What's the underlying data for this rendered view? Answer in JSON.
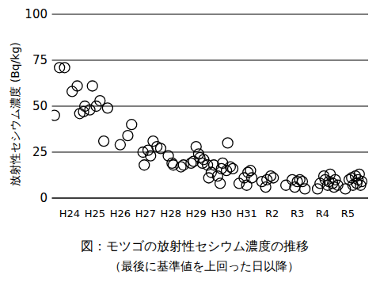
{
  "chart_data": {
    "type": "scatter",
    "title": "図：モツゴの放射性セシウム濃度の推移",
    "subtitle": "（最後に基準値を上回った日以降）",
    "y_label": "放射性セシウム濃度 (Bq/kg)",
    "color": "#000000",
    "marker": "circle",
    "grid": true,
    "xlim": [
      2011.3,
      2023.8
    ],
    "ylim": [
      0,
      100
    ],
    "xticks": [
      {
        "value": 2012,
        "label": "H24"
      },
      {
        "value": 2013,
        "label": "H25"
      },
      {
        "value": 2014,
        "label": "H26"
      },
      {
        "value": 2015,
        "label": "H27"
      },
      {
        "value": 2016,
        "label": "H28"
      },
      {
        "value": 2017,
        "label": "H29"
      },
      {
        "value": 2018,
        "label": "H30"
      },
      {
        "value": 2019,
        "label": "H31"
      },
      {
        "value": 2020,
        "label": "R2"
      },
      {
        "value": 2021,
        "label": "R3"
      },
      {
        "value": 2022,
        "label": "R4"
      },
      {
        "value": 2023,
        "label": "R5"
      }
    ],
    "yticks": [
      0,
      25,
      50,
      75,
      100
    ],
    "x": [
      2011.4,
      2011.6,
      2011.8,
      2012.1,
      2012.3,
      2012.4,
      2012.55,
      2012.6,
      2012.8,
      2012.9,
      2013.05,
      2013.2,
      2013.35,
      2013.5,
      2014.0,
      2014.3,
      2014.45,
      2014.9,
      2014.95,
      2015.1,
      2015.2,
      2015.3,
      2015.45,
      2015.6,
      2015.9,
      2016.05,
      2016.1,
      2016.4,
      2016.5,
      2016.8,
      2016.9,
      2017.0,
      2017.1,
      2017.15,
      2017.25,
      2017.3,
      2017.45,
      2017.5,
      2017.6,
      2017.7,
      2017.85,
      2017.95,
      2018.0,
      2018.05,
      2018.2,
      2018.25,
      2018.35,
      2018.45,
      2018.7,
      2018.9,
      2019.0,
      2019.05,
      2019.15,
      2019.2,
      2019.6,
      2019.75,
      2019.8,
      2019.95,
      2020.05,
      2020.55,
      2020.8,
      2020.9,
      2021.0,
      2021.1,
      2021.2,
      2021.3,
      2021.8,
      2021.9,
      2022.05,
      2022.1,
      2022.2,
      2022.25,
      2022.3,
      2022.4,
      2022.45,
      2022.5,
      2022.6,
      2022.9,
      2023.05,
      2023.15,
      2023.2,
      2023.3,
      2023.35,
      2023.4,
      2023.45,
      2023.5,
      2023.55
    ],
    "values": [
      45,
      71,
      71,
      58,
      61,
      46,
      47,
      50,
      48,
      61,
      50,
      53,
      31,
      49,
      29,
      34,
      40,
      25,
      18,
      26,
      23,
      31,
      28,
      27,
      23,
      19,
      18,
      17,
      18,
      19,
      20,
      28,
      24,
      22,
      19,
      21,
      18,
      11,
      14,
      18,
      12,
      8,
      16,
      19,
      15,
      30,
      17,
      16,
      8,
      11,
      7,
      14,
      15,
      11,
      9,
      6,
      10,
      12,
      11,
      7,
      10,
      6,
      9,
      10,
      9,
      5,
      5,
      8,
      12,
      10,
      7,
      9,
      13,
      8,
      6,
      10,
      7,
      5,
      10,
      11,
      7,
      12,
      8,
      10,
      13,
      7,
      9
    ]
  }
}
